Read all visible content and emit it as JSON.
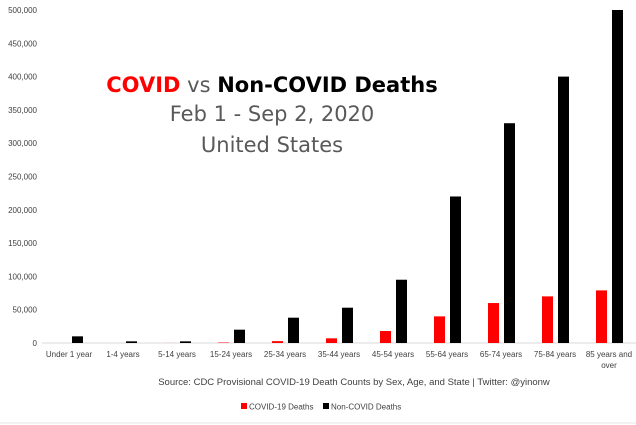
{
  "chart_data": {
    "type": "bar",
    "title_parts": [
      {
        "text": "COVID",
        "color": "#ff0000",
        "bold": true
      },
      {
        "text": " vs ",
        "color": "#595959",
        "bold": false
      },
      {
        "text": "Non-COVID Deaths",
        "color": "#000000",
        "bold": true
      }
    ],
    "subtitle": "Feb 1 - Sep 2, 2020",
    "subtitle2": "United States",
    "categories": [
      "Under 1 year",
      "1-4 years",
      "5-14 years",
      "15-24 years",
      "25-34 years",
      "35-44 years",
      "45-54 years",
      "55-64 years",
      "65-74 years",
      "75-84 years",
      "85 years and over"
    ],
    "series": [
      {
        "name": "COVID-19 Deaths",
        "color": "#ff0000",
        "values": [
          20,
          20,
          60,
          700,
          2800,
          7000,
          18000,
          40000,
          60000,
          70000,
          79000
        ]
      },
      {
        "name": "Non-COVID Deaths",
        "color": "#000000",
        "values": [
          10000,
          2500,
          2500,
          20000,
          38000,
          53000,
          95000,
          220000,
          330000,
          400000,
          500000
        ]
      }
    ],
    "yticks": [
      "0",
      "50,000",
      "100,000",
      "150,000",
      "200,000",
      "250,000",
      "300,000",
      "350,000",
      "400,000",
      "450,000",
      "500,000"
    ],
    "ylim": [
      0,
      500000
    ],
    "grid": false,
    "legend_position": "bottom",
    "source": "Source: CDC Provisional COVID-19 Death Counts by Sex, Age, and State | Twitter: @yinonw"
  }
}
